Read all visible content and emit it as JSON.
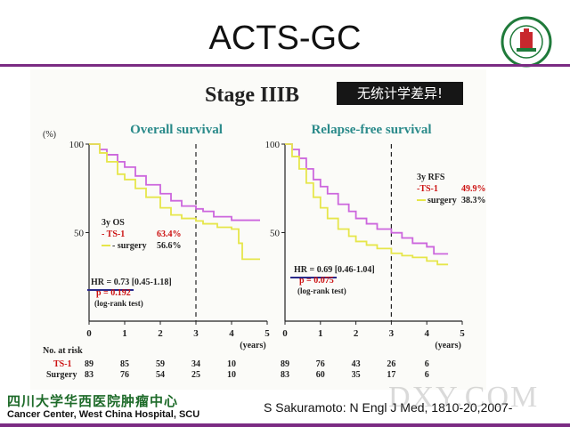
{
  "slide": {
    "title": "ACTS-GC",
    "stage_title": "Stage IIIB",
    "chinese_note": "无统计学差异!",
    "footer_cn": "四川大学华西医院肿瘤中心",
    "footer_en": "Cancer Center, West China Hospital, SCU",
    "citation": "S Sakuramoto: N Engl J Med, 1810-20,2007-",
    "watermark": "DXY.COM"
  },
  "colors": {
    "ts1": "#cc66dd",
    "surgery": "#e6e64a",
    "accent": "#7b2c83",
    "label_red": "#cc1111",
    "title_teal": "#2a8a8a"
  },
  "chart_data": [
    {
      "type": "line",
      "title": "Overall survival",
      "ylabel": "(%)",
      "xlabel": "(years)",
      "xlim": [
        0,
        5
      ],
      "ylim": [
        0,
        100
      ],
      "x_ticks": [
        0,
        1,
        2,
        3,
        4,
        5
      ],
      "y_ticks": [
        50,
        100
      ],
      "series": [
        {
          "name": "TS-1",
          "x": [
            0,
            0.3,
            0.5,
            0.8,
            1.0,
            1.3,
            1.6,
            2.0,
            2.3,
            2.6,
            3.0,
            3.2,
            3.5,
            4.0,
            4.3,
            4.8
          ],
          "y": [
            100,
            97,
            94,
            90,
            87,
            82,
            77,
            72,
            68,
            65,
            63.4,
            62,
            59,
            57,
            57,
            57
          ]
        },
        {
          "name": "surgery",
          "x": [
            0,
            0.3,
            0.5,
            0.8,
            1.0,
            1.3,
            1.6,
            2.0,
            2.3,
            2.6,
            3.0,
            3.2,
            3.6,
            4.0,
            4.2,
            4.3,
            4.8
          ],
          "y": [
            100,
            95,
            90,
            83,
            80,
            75,
            70,
            64,
            60,
            58,
            56.6,
            55,
            53,
            52,
            44,
            35,
            35
          ]
        }
      ],
      "vline_x": 3,
      "annotation": {
        "label": "3y OS",
        "ts1_label": "- TS-1",
        "ts1_value": "63.4%",
        "surgery_label": "- surgery",
        "surgery_value": "56.6%"
      },
      "stats": {
        "hr": "HR = 0.73 [0.45-1.18]",
        "p": "p = 0.192",
        "test": "(log-rank test)"
      },
      "at_risk": {
        "ts1": [
          "89",
          "85",
          "59",
          "34",
          "10"
        ],
        "surgery": [
          "83",
          "76",
          "54",
          "25",
          "10"
        ]
      }
    },
    {
      "type": "line",
      "title": "Relapse-free survival",
      "xlabel": "(years)",
      "xlim": [
        0,
        5
      ],
      "ylim": [
        0,
        100
      ],
      "x_ticks": [
        0,
        1,
        2,
        3,
        4,
        5
      ],
      "y_ticks": [
        50,
        100
      ],
      "series": [
        {
          "name": "TS-1",
          "x": [
            0,
            0.2,
            0.4,
            0.6,
            0.8,
            1.0,
            1.2,
            1.5,
            1.8,
            2.0,
            2.3,
            2.6,
            3.0,
            3.3,
            3.6,
            4.0,
            4.2,
            4.6
          ],
          "y": [
            100,
            97,
            92,
            86,
            80,
            76,
            72,
            66,
            62,
            58,
            55,
            52,
            49.9,
            47,
            44,
            42,
            38,
            38
          ]
        },
        {
          "name": "surgery",
          "x": [
            0,
            0.2,
            0.4,
            0.6,
            0.8,
            1.0,
            1.2,
            1.5,
            1.8,
            2.0,
            2.3,
            2.6,
            3.0,
            3.3,
            3.6,
            4.0,
            4.3,
            4.6
          ],
          "y": [
            100,
            93,
            86,
            78,
            70,
            64,
            58,
            52,
            48,
            45,
            43,
            41,
            38.3,
            37,
            36,
            34,
            32,
            32
          ]
        }
      ],
      "vline_x": 3,
      "annotation": {
        "label": "3y RFS",
        "ts1_label": "-TS-1",
        "ts1_value": "49.9%",
        "surgery_label": "surgery",
        "surgery_value": "38.3%"
      },
      "stats": {
        "hr": "HR = 0.69 [0.46-1.04]",
        "p": "p = 0.075",
        "test": "(log-rank test)"
      },
      "at_risk": {
        "ts1": [
          "89",
          "76",
          "43",
          "26",
          "6"
        ],
        "surgery": [
          "83",
          "60",
          "35",
          "17",
          "6"
        ]
      }
    }
  ],
  "at_risk_header": "No. at risk",
  "at_risk_labels": {
    "ts1": "TS-1",
    "surgery": "Surgery"
  }
}
